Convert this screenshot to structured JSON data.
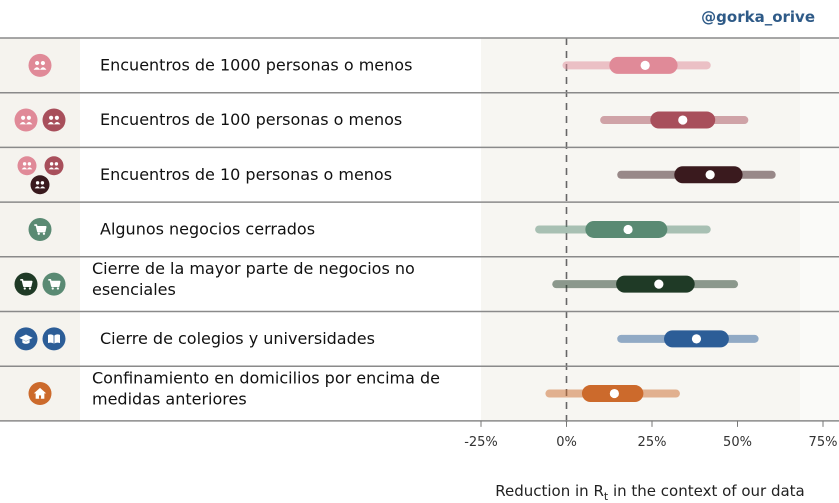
{
  "header": {
    "handle": "@gorka_orive"
  },
  "colors": {
    "pink": "#e08a98",
    "rose": "#a84f5b",
    "maroon": "#3a1a1e",
    "sage": "#5a8a73",
    "darkgreen": "#1f3a26",
    "blue": "#2c5d97",
    "orange": "#cc6a2c"
  },
  "chart_data": {
    "type": "interval",
    "xlabel": "Reduction in R_t in the context of our data",
    "xlim": [
      -25,
      75
    ],
    "ticks": [
      "-25%",
      "0%",
      "25%",
      "50%",
      "75%"
    ],
    "tick_values": [
      -25,
      0,
      25,
      50,
      75
    ],
    "rows": [
      {
        "label": [
          "Encuentros de 1000 personas o menos"
        ],
        "icons": [
          {
            "name": "people-icon",
            "color": "pink"
          }
        ],
        "median": 23,
        "ci50": [
          15,
          30
        ],
        "ci95": [
          0,
          41
        ],
        "color": "pink"
      },
      {
        "label": [
          "Encuentros de 100 personas o menos"
        ],
        "icons": [
          {
            "name": "people-icon",
            "color": "pink"
          },
          {
            "name": "people-icon",
            "color": "rose"
          }
        ],
        "median": 34,
        "ci50": [
          27,
          41
        ],
        "ci95": [
          11,
          52
        ],
        "color": "rose"
      },
      {
        "label": [
          "Encuentros de 10 personas o menos"
        ],
        "icons": [
          {
            "name": "people-icon",
            "color": "pink"
          },
          {
            "name": "people-icon",
            "color": "rose"
          },
          {
            "name": "people-icon",
            "color": "maroon"
          }
        ],
        "median": 42,
        "ci50": [
          34,
          49
        ],
        "ci95": [
          16,
          60
        ],
        "color": "maroon"
      },
      {
        "label": [
          "Algunos negocios cerrados"
        ],
        "icons": [
          {
            "name": "cart-icon",
            "color": "sage"
          }
        ],
        "median": 18,
        "ci50": [
          8,
          27
        ],
        "ci95": [
          -8,
          41
        ],
        "color": "sage"
      },
      {
        "label": [
          "Cierre de la mayor parte de negocios no",
          "esenciales"
        ],
        "icons": [
          {
            "name": "cart-icon",
            "color": "darkgreen"
          },
          {
            "name": "cart-icon",
            "color": "sage"
          }
        ],
        "median": 27,
        "ci50": [
          17,
          35
        ],
        "ci95": [
          -3,
          49
        ],
        "color": "darkgreen"
      },
      {
        "label": [
          "Cierre de colegios y universidades"
        ],
        "icons": [
          {
            "name": "graduation-cap-icon",
            "color": "blue"
          },
          {
            "name": "book-icon",
            "color": "blue"
          }
        ],
        "median": 38,
        "ci50": [
          31,
          45
        ],
        "ci95": [
          16,
          55
        ],
        "color": "blue"
      },
      {
        "label": [
          "Confinamiento en domicilios por encima de",
          "medidas anteriores"
        ],
        "icons": [
          {
            "name": "house-icon",
            "color": "orange"
          }
        ],
        "median": 14,
        "ci50": [
          7,
          20
        ],
        "ci95": [
          -5,
          32
        ],
        "color": "orange"
      }
    ]
  }
}
